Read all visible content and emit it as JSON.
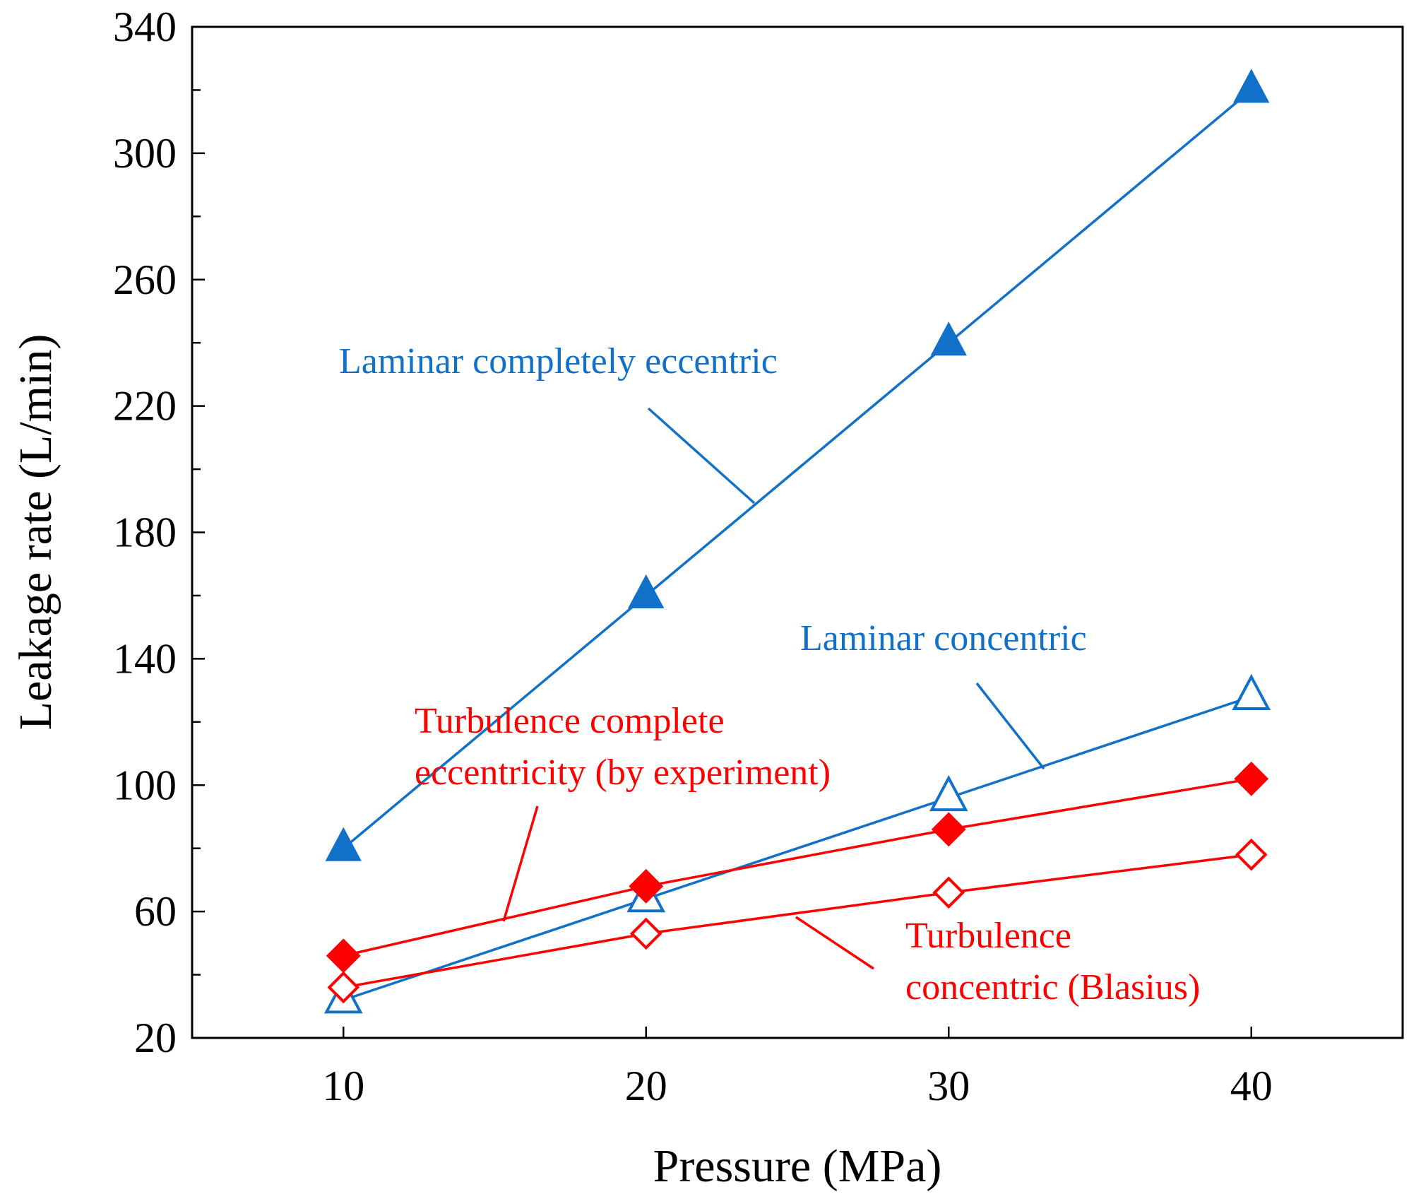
{
  "chart_data": {
    "type": "line",
    "title": "",
    "xlabel": "Pressure (MPa)",
    "ylabel": "Leakage rate (L/min)",
    "x": [
      10,
      20,
      30,
      40
    ],
    "xlim": [
      5,
      45
    ],
    "ylim": [
      20,
      340
    ],
    "x_ticks": [
      10,
      20,
      30,
      40
    ],
    "y_ticks": [
      20,
      60,
      100,
      140,
      180,
      220,
      260,
      300,
      340
    ],
    "y_minor_step": 20,
    "grid": false,
    "series": [
      {
        "name": "Laminar completely eccentric",
        "color": "#1170c8",
        "marker": "triangle",
        "filled": true,
        "values": [
          80,
          160,
          240,
          320
        ]
      },
      {
        "name": "Laminar concentric",
        "color": "#1170c8",
        "marker": "triangle",
        "filled": false,
        "values": [
          32,
          64,
          96,
          128
        ]
      },
      {
        "name": "Turbulence complete eccentricity (by experiment)",
        "color": "#ff0000",
        "marker": "diamond",
        "filled": true,
        "values": [
          46,
          68,
          86,
          102
        ]
      },
      {
        "name": "Turbulence concentric (Blasius)",
        "color": "#ff0000",
        "marker": "diamond",
        "filled": false,
        "values": [
          36,
          53,
          66,
          78
        ]
      }
    ],
    "annotations": [
      {
        "series": 0,
        "color": "#1170c8",
        "lines": [
          "Laminar completely eccentric"
        ]
      },
      {
        "series": 1,
        "color": "#1170c8",
        "lines": [
          "Laminar concentric"
        ]
      },
      {
        "series": 2,
        "color": "#ff0000",
        "lines": [
          "Turbulence complete",
          "eccentricity (by experiment)"
        ]
      },
      {
        "series": 3,
        "color": "#ff0000",
        "lines": [
          "Turbulence",
          "concentric (Blasius)"
        ]
      }
    ]
  }
}
